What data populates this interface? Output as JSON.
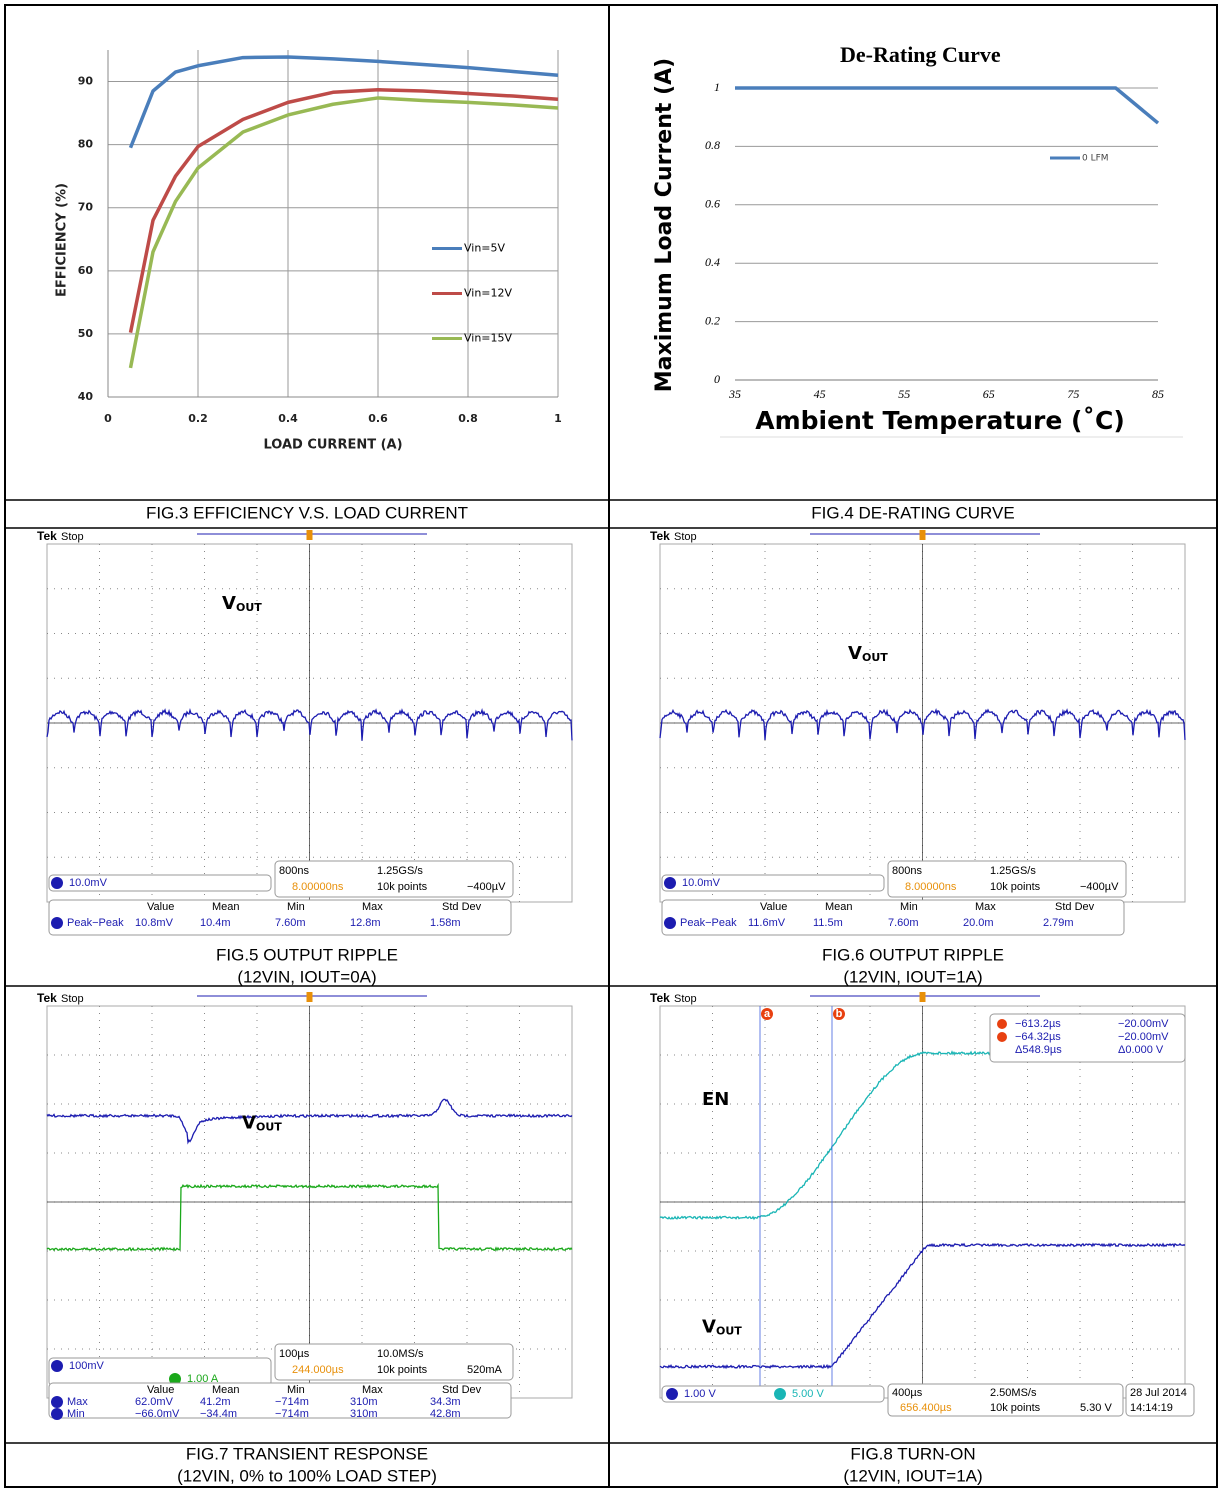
{
  "captions": [
    [
      "FIG.3 EFFICIENCY V.S. LOAD CURRENT"
    ],
    [
      "FIG.4 DE-RATING CURVE"
    ],
    [
      "FIG.5 OUTPUT RIPPLE",
      "(12VIN, IOUT=0A)"
    ],
    [
      "FIG.6 OUTPUT RIPPLE",
      "(12VIN, IOUT=1A)"
    ],
    [
      "FIG.7 TRANSIENT RESPONSE",
      "(12VIN, 0% to 100% LOAD STEP)"
    ],
    [
      "FIG.8 TURN-ON",
      "(12VIN, IOUT=1A)"
    ]
  ],
  "chart_data": [
    {
      "type": "line",
      "y_label": "EFFICIENCY (%)",
      "x_label": "LOAD CURRENT (A)",
      "x": [
        0.05,
        0.1,
        0.15,
        0.2,
        0.3,
        0.4,
        0.5,
        0.6,
        0.7,
        0.8,
        0.9,
        1
      ],
      "series": [
        {
          "name": "Vin=5V",
          "color": "#4a7ebb",
          "values": [
            79.5,
            88.5,
            91.5,
            92.5,
            93.8,
            93.9,
            93.6,
            93.2,
            92.7,
            92.2,
            91.6,
            91.0
          ]
        },
        {
          "name": "Vin=12V",
          "color": "#be4b48",
          "values": [
            50.2,
            68,
            75,
            79.7,
            84,
            86.7,
            88.3,
            88.7,
            88.5,
            88.1,
            87.7,
            87.2
          ]
        },
        {
          "name": "Vin=15V",
          "color": "#98b954",
          "values": [
            44.6,
            63,
            71,
            76.3,
            82,
            84.7,
            86.4,
            87.4,
            87,
            86.7,
            86.3,
            85.8
          ]
        }
      ],
      "xlim": [
        0,
        1
      ],
      "xticks": [
        0,
        0.2,
        0.4,
        0.6,
        0.8,
        1
      ],
      "ylim": [
        40,
        95
      ],
      "yticks": [
        40,
        50,
        60,
        70,
        80,
        90
      ],
      "grid": "both",
      "legend": "right"
    },
    {
      "type": "line",
      "title": "De-Rating Curve",
      "y_label": "Maximum Load Current (A)",
      "x_label": "Ambient Temperature (˚C)",
      "x": [
        35,
        80,
        85
      ],
      "series": [
        {
          "name": "0 LFM",
          "color": "#4a7ebb",
          "values": [
            1,
            1,
            0.88
          ]
        }
      ],
      "xlim": [
        35,
        85
      ],
      "xticks": [
        35,
        45,
        55,
        65,
        75,
        85
      ],
      "ylim": [
        0,
        1
      ],
      "yticks": [
        0,
        0.2,
        0.4,
        0.6,
        0.8,
        1
      ],
      "grid": "y",
      "legend": "upper right"
    }
  ],
  "scopes": [
    {
      "brand": "Tek",
      "status": "Stop",
      "signals": [
        {
          "label": "V",
          "sub": "OUT"
        }
      ],
      "channels": [
        {
          "scale": "10.0mV"
        }
      ],
      "timebase": "800ns",
      "sample_rate": "1.25GS/s",
      "trigger_pos": "8.00000ns",
      "record": "10k points",
      "trigger_level": "−400µV",
      "meas_header": [
        "Value",
        "Mean",
        "Min",
        "Max",
        "Std Dev"
      ],
      "meas": [
        {
          "name": "Peak−Peak",
          "values": [
            "10.8mV",
            "10.4m",
            "7.60m",
            "12.8m",
            "1.58m"
          ]
        }
      ]
    },
    {
      "brand": "Tek",
      "status": "Stop",
      "signals": [
        {
          "label": "V",
          "sub": "OUT"
        }
      ],
      "channels": [
        {
          "scale": "10.0mV"
        }
      ],
      "timebase": "800ns",
      "sample_rate": "1.25GS/s",
      "trigger_pos": "8.00000ns",
      "record": "10k points",
      "trigger_level": "−400µV",
      "meas_header": [
        "Value",
        "Mean",
        "Min",
        "Max",
        "Std Dev"
      ],
      "meas": [
        {
          "name": "Peak−Peak",
          "values": [
            "11.6mV",
            "11.5m",
            "7.60m",
            "20.0m",
            "2.79m"
          ]
        }
      ]
    },
    {
      "brand": "Tek",
      "status": "Stop",
      "signals": [
        {
          "label": "V",
          "sub": "OUT"
        }
      ],
      "channels": [
        {
          "scale": "100mV"
        },
        {
          "scale": "1.00 A"
        }
      ],
      "timebase": "100µs",
      "sample_rate": "10.0MS/s",
      "trigger_pos": "244.000µs",
      "record": "10k points",
      "trigger_level": "520mA",
      "meas_header": [
        "Value",
        "Mean",
        "Min",
        "Max",
        "Std Dev"
      ],
      "meas": [
        {
          "name": "Max",
          "values": [
            "62.0mV",
            "41.2m",
            "−714m",
            "310m",
            "34.3m"
          ]
        },
        {
          "name": "Min",
          "values": [
            "−66.0mV",
            "−34.4m",
            "−714m",
            "310m",
            "42.8m"
          ]
        }
      ]
    },
    {
      "brand": "Tek",
      "status": "Stop",
      "signals": [
        {
          "label": "EN"
        },
        {
          "label": "V",
          "sub": "OUT"
        }
      ],
      "channels": [
        {
          "scale": "1.00 V"
        },
        {
          "scale": "5.00 V"
        }
      ],
      "timebase": "400µs",
      "sample_rate": "2.50MS/s",
      "trigger_pos": "656.400µs",
      "record": "10k points",
      "trigger_level": "5.30 V",
      "date": "28 Jul 2014",
      "time": "14:14:19",
      "cursors": [
        {
          "label": "a",
          "time": "−613.2µs",
          "level": "−20.00mV"
        },
        {
          "label": "b",
          "time": "−64.32µs",
          "level": "−20.00mV"
        }
      ],
      "delta": {
        "time": "Δ548.9µs",
        "level": "Δ0.000 V"
      }
    }
  ]
}
